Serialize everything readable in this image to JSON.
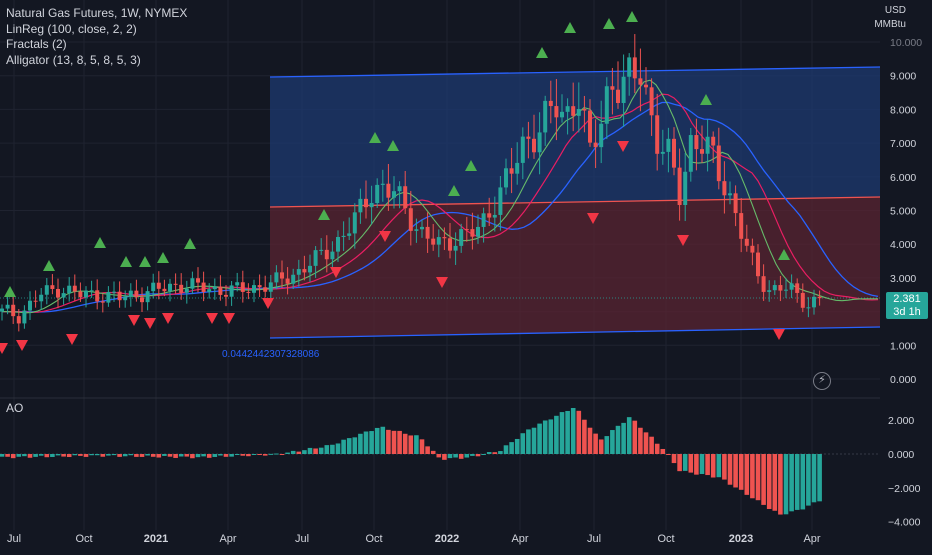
{
  "legend": {
    "symbol": "Natural Gas Futures, 1W, NYMEX",
    "linreg": "LinReg (100, close, 2, 2)",
    "fractals": "Fractals (2)",
    "alligator": "Alligator (13, 8, 5, 8, 5, 3)"
  },
  "axis": {
    "unit_top": "USD",
    "unit_bottom": "MMBtu",
    "price_ticks": [
      "10.000",
      "9.000",
      "8.000",
      "7.000",
      "6.000",
      "5.000",
      "4.000",
      "3.000",
      "2.000",
      "1.000",
      "0.000"
    ],
    "ao_ticks": [
      "2.000",
      "0.000",
      "−2.000",
      "−4.000"
    ],
    "time_labels": [
      "Jul",
      "Oct",
      "2021",
      "Apr",
      "Jul",
      "Oct",
      "2022",
      "Apr",
      "Jul",
      "Oct",
      "2023",
      "Apr"
    ]
  },
  "price_badge": {
    "price": "2.381",
    "countdown": "3d 1h"
  },
  "regression_label": "0.0442442307328086",
  "ao_title": "AO",
  "colors": {
    "background": "#131722",
    "up": "#26a69a",
    "down": "#ef5350",
    "regression_line": "#2962ff",
    "upper_channel_fill": "#1e3a70",
    "lower_channel_fill": "#5a2431"
  },
  "icons": {
    "replay": "lightning-icon"
  }
}
